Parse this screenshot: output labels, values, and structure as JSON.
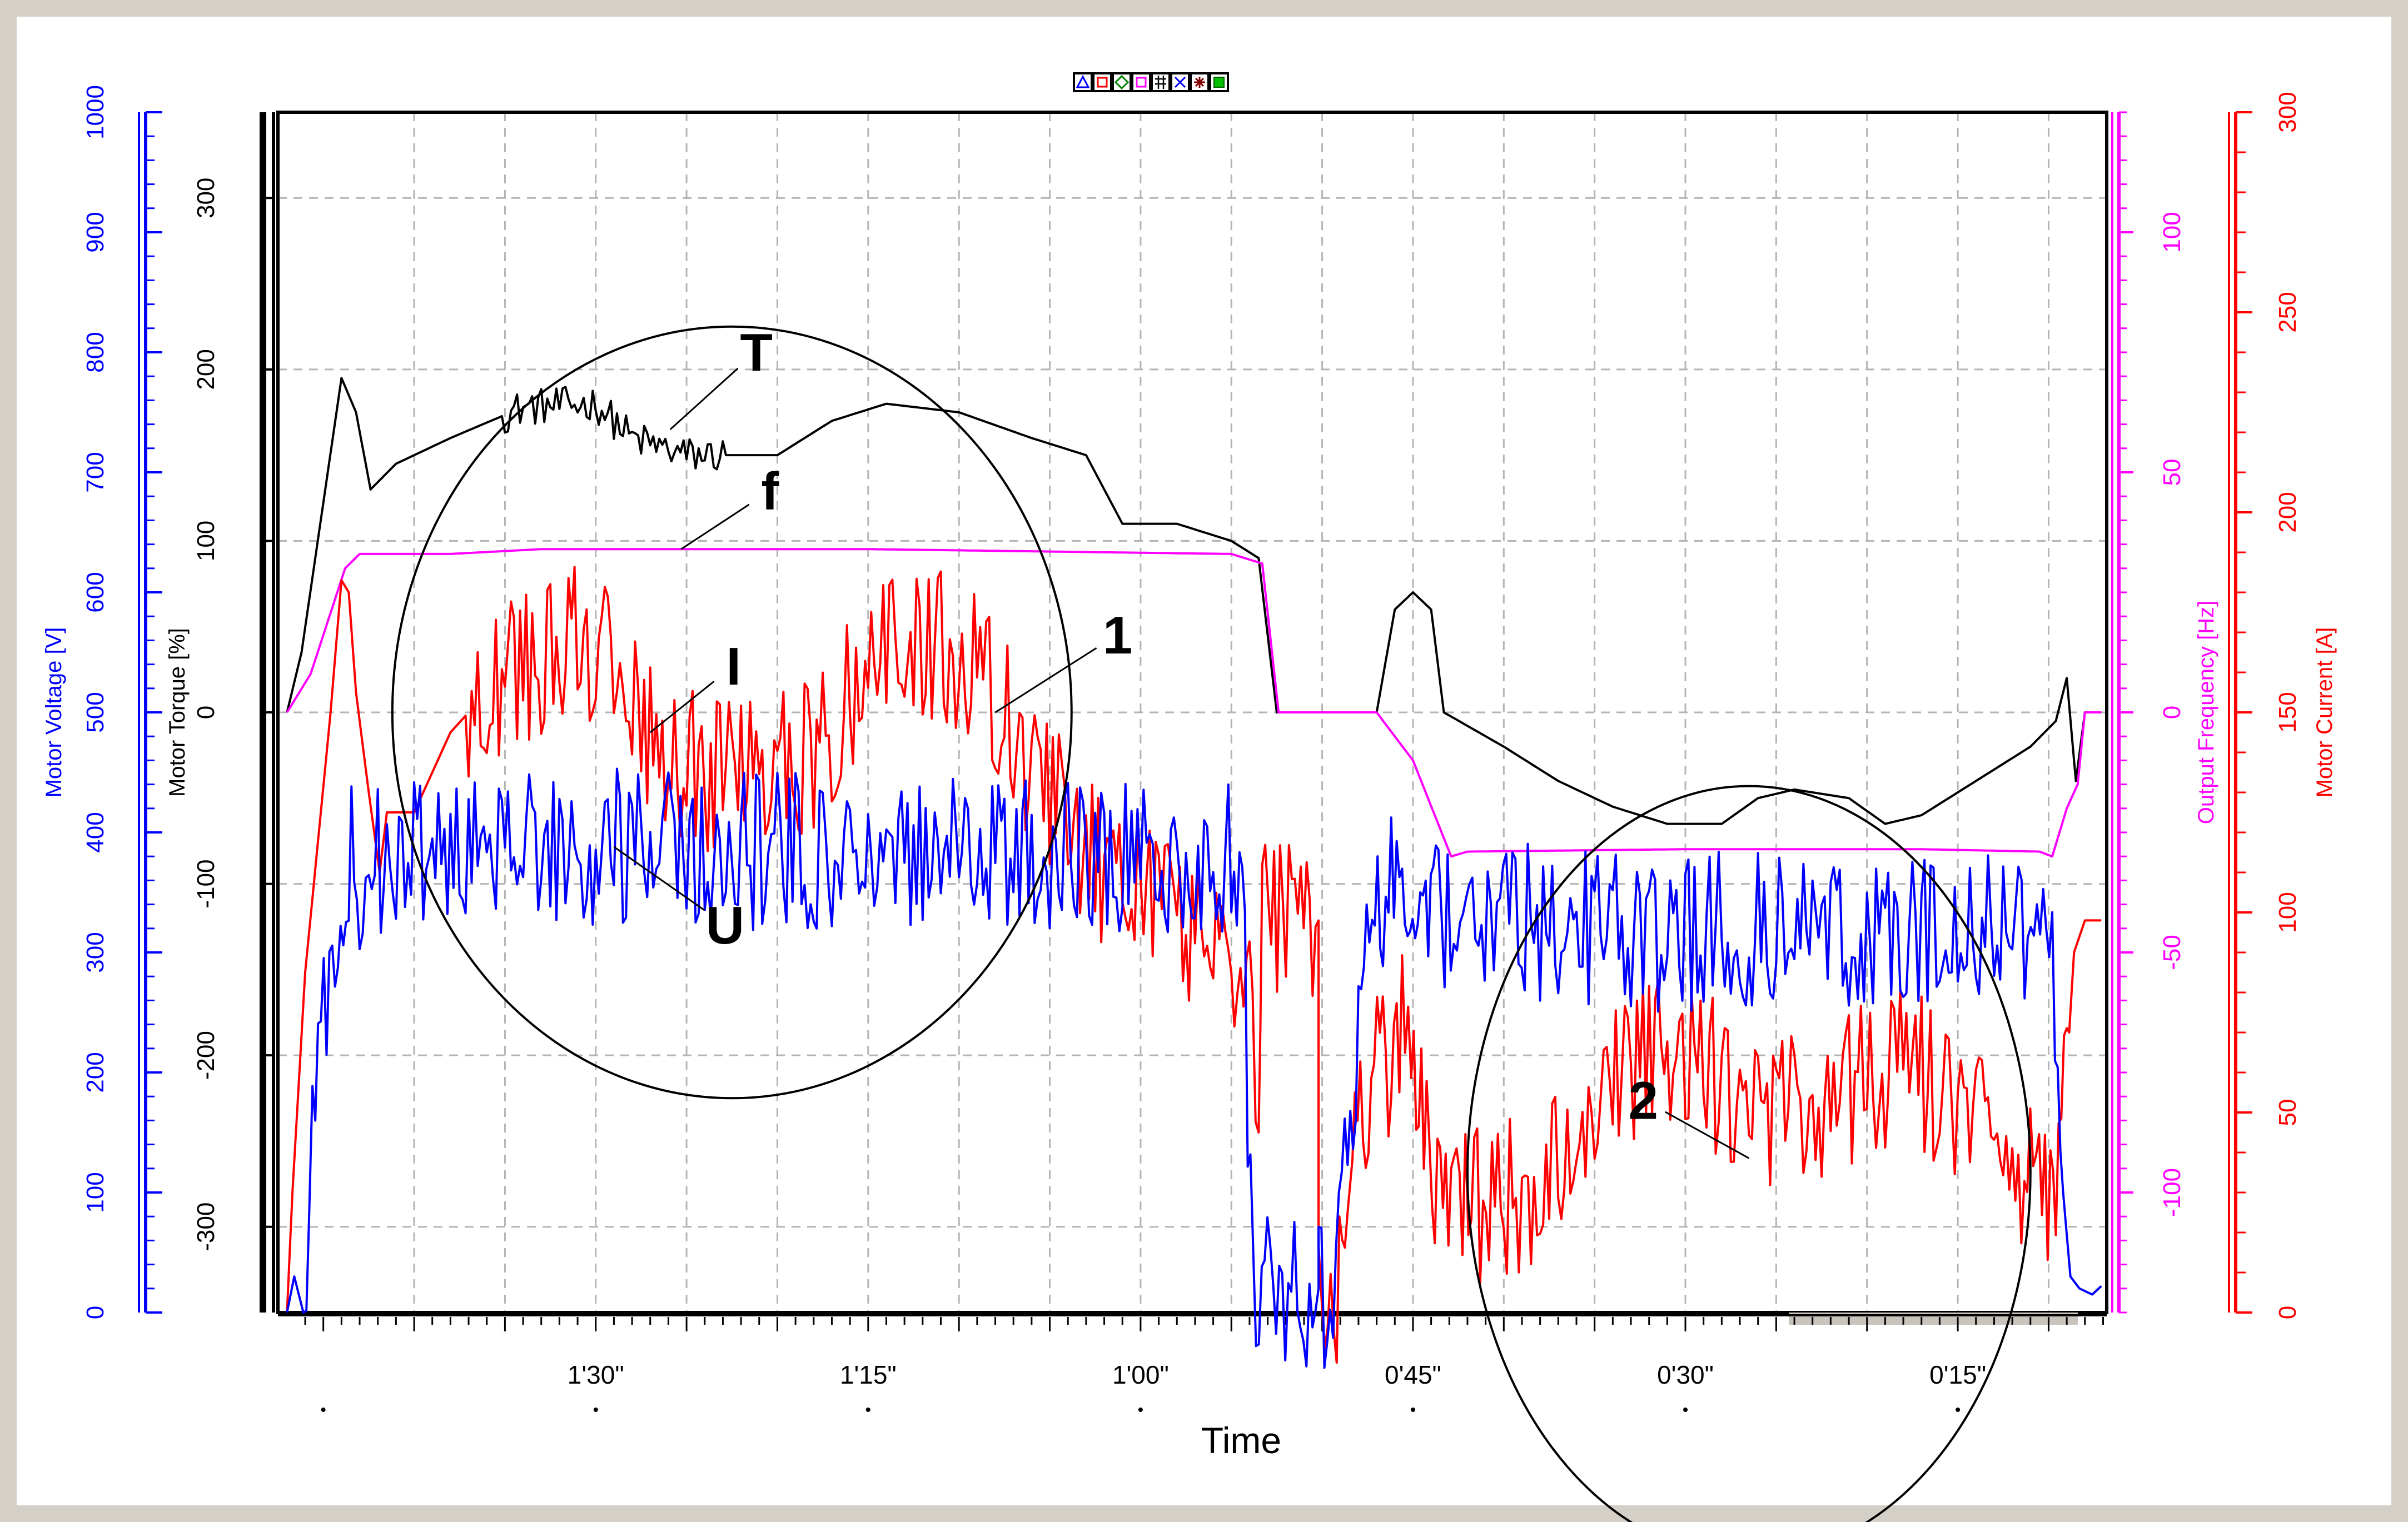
{
  "toolbar": {
    "buttons": [
      {
        "name": "marker-triangle-button",
        "color": "#0000ff",
        "glyph": "triangle"
      },
      {
        "name": "marker-square-button",
        "color": "#ff0000",
        "glyph": "square"
      },
      {
        "name": "marker-diamond-button",
        "color": "#008000",
        "glyph": "diamond"
      },
      {
        "name": "marker-square-magenta-button",
        "color": "#ff00ff",
        "glyph": "square"
      },
      {
        "name": "grid-toggle-button",
        "color": "#000000",
        "glyph": "grid"
      },
      {
        "name": "marker-cross-button",
        "color": "#0000ff",
        "glyph": "cross"
      },
      {
        "name": "marker-star-button",
        "color": "#800000",
        "glyph": "star"
      },
      {
        "name": "marker-filled-square-button",
        "color": "#00c000",
        "glyph": "filled"
      }
    ]
  },
  "chart_data": {
    "type": "line",
    "xlabel": "Time",
    "x_tick_labels": [
      {
        "label": "1'30\"",
        "t": 90
      },
      {
        "label": "1'15\"",
        "t": 75
      },
      {
        "label": "1'00\"",
        "t": 60
      },
      {
        "label": "0'45\"",
        "t": 45
      },
      {
        "label": "0'30\"",
        "t": 30
      },
      {
        "label": "0'15\"",
        "t": 15
      }
    ],
    "x_range": [
      107.5,
      6.8
    ],
    "grid": true,
    "axes": {
      "voltage": {
        "label": "Motor Voltage [V]",
        "range": [
          0,
          1000
        ],
        "ticks": [
          0,
          100,
          200,
          300,
          400,
          500,
          600,
          700,
          800,
          900,
          1000
        ],
        "color": "#0000ff"
      },
      "torque": {
        "label": "Motor Torque [%]",
        "range": [
          -350,
          350
        ],
        "ticks": [
          -300,
          -200,
          -100,
          0,
          100,
          200,
          300
        ],
        "color": "#000000"
      },
      "frequency": {
        "label": "Output Frequency [Hz]",
        "range": [
          -125,
          125
        ],
        "ticks": [
          -100,
          -50,
          0,
          50,
          100
        ],
        "color": "#ff00ff"
      },
      "current": {
        "label": "Motor Current [A]",
        "range": [
          0,
          300
        ],
        "ticks": [
          0,
          50,
          100,
          150,
          200,
          250,
          300
        ],
        "color": "#ff0000"
      }
    },
    "series": [
      {
        "name": "T",
        "axis": "torque",
        "color": "#000000",
        "noise": 0.7,
        "noise_range": [
          95,
          83
        ],
        "points": [
          [
            107,
            0
          ],
          [
            106.2,
            35
          ],
          [
            104,
            195
          ],
          [
            103.2,
            175
          ],
          [
            102.4,
            130
          ],
          [
            101,
            145
          ],
          [
            98,
            160
          ],
          [
            94,
            178
          ],
          [
            90,
            180
          ],
          [
            88,
            160
          ],
          [
            85,
            150
          ],
          [
            80,
            150
          ],
          [
            77,
            170
          ],
          [
            74,
            180
          ],
          [
            70,
            175
          ],
          [
            66,
            160
          ],
          [
            63,
            150
          ],
          [
            61,
            110
          ],
          [
            58,
            110
          ],
          [
            55,
            100
          ],
          [
            53.5,
            90
          ],
          [
            52.5,
            0
          ],
          [
            50,
            0
          ],
          [
            47,
            0
          ],
          [
            46,
            60
          ],
          [
            45,
            70
          ],
          [
            44,
            60
          ],
          [
            43.3,
            0
          ],
          [
            40,
            -20
          ],
          [
            37,
            -40
          ],
          [
            34,
            -55
          ],
          [
            31,
            -65
          ],
          [
            28,
            -65
          ],
          [
            26,
            -50
          ],
          [
            24,
            -45
          ],
          [
            21,
            -50
          ],
          [
            19,
            -65
          ],
          [
            17,
            -60
          ],
          [
            14,
            -40
          ],
          [
            11,
            -20
          ],
          [
            9.6,
            -5
          ],
          [
            9.0,
            20
          ],
          [
            8.5,
            -40
          ],
          [
            8.0,
            0
          ],
          [
            7.1,
            0
          ]
        ]
      },
      {
        "name": "f",
        "axis": "frequency",
        "color": "#ff00ff",
        "noise": 0,
        "points": [
          [
            107,
            0
          ],
          [
            105.7,
            8
          ],
          [
            103.8,
            30
          ],
          [
            103.0,
            33
          ],
          [
            98,
            33
          ],
          [
            93,
            34
          ],
          [
            85,
            34
          ],
          [
            75,
            34
          ],
          [
            65,
            33.5
          ],
          [
            55,
            33
          ],
          [
            53.3,
            31
          ],
          [
            52.4,
            0
          ],
          [
            47,
            0
          ],
          [
            45,
            -10
          ],
          [
            42.9,
            -30
          ],
          [
            42,
            -29
          ],
          [
            30,
            -28.5
          ],
          [
            17,
            -28.5
          ],
          [
            10.5,
            -29
          ],
          [
            9.8,
            -30
          ],
          [
            9.0,
            -20
          ],
          [
            8.4,
            -15
          ],
          [
            8.0,
            0
          ],
          [
            7.1,
            0
          ]
        ]
      },
      {
        "name": "I",
        "axis": "current",
        "color": "#ff0000",
        "noise": 3.0,
        "noise_range": [
          97,
          9
        ],
        "points": [
          [
            107,
            0
          ],
          [
            106.7,
            30
          ],
          [
            106,
            85
          ],
          [
            104.6,
            150
          ],
          [
            104,
            183
          ],
          [
            103.6,
            180
          ],
          [
            103.2,
            155
          ],
          [
            102.5,
            130
          ],
          [
            101.9,
            110
          ],
          [
            101.5,
            125
          ],
          [
            100,
            125
          ],
          [
            98,
            145
          ],
          [
            96,
            155
          ],
          [
            93,
            162
          ],
          [
            91,
            168
          ],
          [
            89,
            160
          ],
          [
            88,
            150
          ],
          [
            86,
            140
          ],
          [
            84,
            135
          ],
          [
            80,
            138
          ],
          [
            78,
            140
          ],
          [
            75,
            160
          ],
          [
            73,
            168
          ],
          [
            71,
            168
          ],
          [
            69,
            160
          ],
          [
            67,
            145
          ],
          [
            65,
            130
          ],
          [
            63,
            115
          ],
          [
            61,
            103
          ],
          [
            59,
            100
          ],
          [
            57,
            95
          ],
          [
            55,
            85
          ],
          [
            54,
            80
          ],
          [
            53.5,
            45
          ],
          [
            53.3,
            98
          ],
          [
            50.2,
            98
          ],
          [
            50.2,
            0
          ],
          [
            49.2,
            0
          ],
          [
            48.6,
            25
          ],
          [
            48.2,
            45
          ],
          [
            47.3,
            60
          ],
          [
            46.5,
            62
          ],
          [
            45.6,
            70
          ],
          [
            45.1,
            70
          ],
          [
            44.4,
            50
          ],
          [
            43.8,
            30
          ],
          [
            42.6,
            25
          ],
          [
            40,
            28
          ],
          [
            38,
            32
          ],
          [
            36,
            40
          ],
          [
            34,
            55
          ],
          [
            32.5,
            62
          ],
          [
            31.5,
            68
          ],
          [
            30,
            65
          ],
          [
            28,
            58
          ],
          [
            26,
            52
          ],
          [
            24,
            50
          ],
          [
            22,
            52
          ],
          [
            20,
            58
          ],
          [
            18,
            62
          ],
          [
            17,
            60
          ],
          [
            15,
            52
          ],
          [
            13,
            45
          ],
          [
            11.5,
            35
          ],
          [
            10.2,
            25
          ],
          [
            9.6,
            25
          ],
          [
            9.0,
            60
          ],
          [
            8.6,
            90
          ],
          [
            8.0,
            98
          ],
          [
            7.1,
            98
          ]
        ]
      },
      {
        "name": "U",
        "axis": "voltage",
        "color": "#0000ff",
        "noise": 3.0,
        "noise_range": [
          106,
          9
        ],
        "points": [
          [
            107,
            0
          ],
          [
            106.6,
            30
          ],
          [
            106.1,
            0
          ],
          [
            105.6,
            150
          ],
          [
            104.2,
            350
          ],
          [
            103.6,
            380
          ],
          [
            103.0,
            368
          ],
          [
            100,
            378
          ],
          [
            95,
            384
          ],
          [
            90,
            388
          ],
          [
            87,
            386
          ],
          [
            80,
            384
          ],
          [
            75,
            388
          ],
          [
            70,
            385
          ],
          [
            65,
            378
          ],
          [
            60,
            375
          ],
          [
            56,
            375
          ],
          [
            55,
            374
          ],
          [
            54.4,
            370
          ],
          [
            53.8,
            0
          ],
          [
            52.7,
            20
          ],
          [
            50.2,
            20
          ],
          [
            50.2,
            10
          ],
          [
            49.4,
            0
          ],
          [
            48.6,
            150
          ],
          [
            47.4,
            300
          ],
          [
            46.2,
            350
          ],
          [
            45.3,
            350
          ],
          [
            44.6,
            350
          ],
          [
            44.3,
            345
          ],
          [
            43.6,
            330
          ],
          [
            38,
            325
          ],
          [
            32,
            316
          ],
          [
            28,
            318
          ],
          [
            22,
            317
          ],
          [
            17,
            318
          ],
          [
            12,
            320
          ],
          [
            10.3,
            325
          ],
          [
            9.8,
            320
          ],
          [
            9.2,
            100
          ],
          [
            8.8,
            30
          ],
          [
            8.3,
            20
          ],
          [
            7.6,
            15
          ],
          [
            7.1,
            22
          ]
        ]
      }
    ],
    "annotations": [
      {
        "label": "T",
        "at": [
          85.9,
          165
        ],
        "series": "T",
        "axis": "torque",
        "label_offset": [
          155,
          -140
        ]
      },
      {
        "label": "f",
        "at": [
          85.3,
          34
        ],
        "series": "f",
        "axis": "frequency",
        "label_offset": [
          160,
          -105
        ]
      },
      {
        "label": "I",
        "at": [
          87.0,
          145
        ],
        "series": "I",
        "axis": "current",
        "label_offset": [
          150,
          -120
        ]
      },
      {
        "label": "U",
        "at": [
          89.0,
          388
        ],
        "series": "U",
        "axis": "voltage",
        "label_offset": [
          200,
          140
        ]
      },
      {
        "label": "1",
        "at": [
          68.0,
          0
        ],
        "axis": "torque",
        "label_offset": [
          220,
          -140
        ]
      },
      {
        "label": "2",
        "at": [
          26.5,
          -260
        ],
        "axis": "torque",
        "label_offset": [
          -190,
          -105
        ]
      }
    ],
    "regions": [
      {
        "label": "1",
        "center": [
          82.5,
          0
        ],
        "axis": "torque",
        "rx_t": 18.7,
        "ry": 75
      },
      {
        "label": "2",
        "center": [
          26.5,
          -268
        ],
        "axis": "torque",
        "rx_t": 15.5,
        "ry": 75
      }
    ]
  }
}
